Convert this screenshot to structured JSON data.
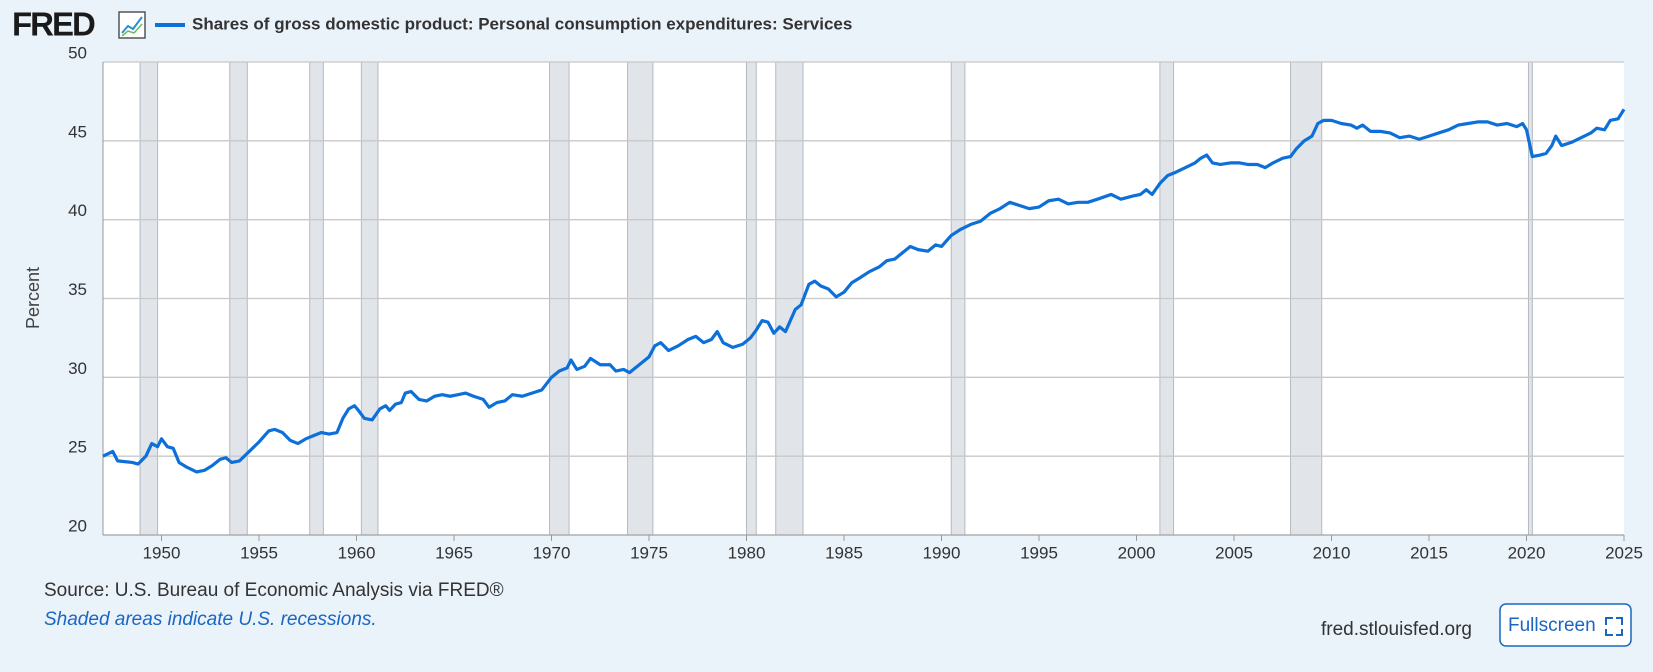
{
  "header": {
    "logo": "FRED"
  },
  "chart_data": {
    "type": "line",
    "y_label": "Percent",
    "x": [
      1947.0,
      1947.5,
      1947.75,
      1948.5,
      1948.8,
      1949.2,
      1949.5,
      1949.8,
      1950.0,
      1950.3,
      1950.6,
      1950.9,
      1951.3,
      1951.8,
      1952.2,
      1952.6,
      1953.0,
      1953.3,
      1953.6,
      1954.0,
      1954.5,
      1955.0,
      1955.5,
      1955.8,
      1956.2,
      1956.6,
      1957.0,
      1957.4,
      1957.8,
      1958.2,
      1958.6,
      1959.0,
      1959.3,
      1959.6,
      1959.9,
      1960.1,
      1960.4,
      1960.8,
      1961.2,
      1961.5,
      1961.7,
      1962.0,
      1962.3,
      1962.5,
      1962.8,
      1963.2,
      1963.6,
      1964.0,
      1964.4,
      1964.8,
      1965.2,
      1965.6,
      1966.0,
      1966.5,
      1966.8,
      1967.2,
      1967.6,
      1968.0,
      1968.5,
      1969.0,
      1969.5,
      1970.0,
      1970.4,
      1970.8,
      1971.0,
      1971.3,
      1971.7,
      1972.0,
      1972.5,
      1973.0,
      1973.3,
      1973.7,
      1974.0,
      1974.5,
      1975.0,
      1975.3,
      1975.6,
      1976.0,
      1976.5,
      1977.0,
      1977.4,
      1977.8,
      1978.2,
      1978.5,
      1978.8,
      1979.3,
      1979.8,
      1980.2,
      1980.5,
      1980.8,
      1981.1,
      1981.4,
      1981.7,
      1982.0,
      1982.5,
      1982.8,
      1983.2,
      1983.5,
      1983.8,
      1984.2,
      1984.6,
      1985.0,
      1985.4,
      1985.8,
      1986.3,
      1986.8,
      1987.2,
      1987.6,
      1988.0,
      1988.4,
      1988.8,
      1989.3,
      1989.7,
      1990.0,
      1990.5,
      1991.0,
      1991.5,
      1992.0,
      1992.5,
      1993.0,
      1993.5,
      1994.0,
      1994.5,
      1995.0,
      1995.5,
      1996.0,
      1996.5,
      1997.0,
      1997.5,
      1998.0,
      1998.7,
      1999.2,
      1999.8,
      2000.2,
      2000.5,
      2000.8,
      2001.2,
      2001.6,
      2002.0,
      2002.5,
      2003.0,
      2003.3,
      2003.6,
      2003.9,
      2004.3,
      2004.8,
      2005.3,
      2005.7,
      2006.2,
      2006.6,
      2007.0,
      2007.5,
      2007.9,
      2008.2,
      2008.6,
      2009.0,
      2009.3,
      2009.6,
      2010.0,
      2010.5,
      2011.0,
      2011.3,
      2011.6,
      2012.0,
      2012.5,
      2013.0,
      2013.5,
      2014.0,
      2014.5,
      2015.0,
      2015.5,
      2016.0,
      2016.5,
      2017.0,
      2017.5,
      2018.0,
      2018.5,
      2019.0,
      2019.5,
      2019.8,
      2020.0,
      2020.3,
      2020.7,
      2021.0,
      2021.3,
      2021.5,
      2021.8,
      2022.3,
      2022.8,
      2023.3,
      2023.6,
      2024.0,
      2024.3,
      2024.7,
      2025.0
    ],
    "series": [
      {
        "name": "Shares of gross domestic product: Personal consumption expenditures: Services",
        "color": "#0d6fd9",
        "values": [
          25.0,
          25.3,
          24.7,
          24.6,
          24.5,
          25.0,
          25.8,
          25.6,
          26.1,
          25.6,
          25.5,
          24.6,
          24.3,
          24.0,
          24.1,
          24.4,
          24.8,
          24.9,
          24.6,
          24.7,
          25.3,
          25.9,
          26.6,
          26.7,
          26.5,
          26.0,
          25.8,
          26.1,
          26.3,
          26.5,
          26.4,
          26.5,
          27.4,
          28.0,
          28.2,
          27.9,
          27.4,
          27.3,
          28.0,
          28.2,
          27.9,
          28.3,
          28.4,
          29.0,
          29.1,
          28.6,
          28.5,
          28.8,
          28.9,
          28.8,
          28.9,
          29.0,
          28.8,
          28.6,
          28.1,
          28.4,
          28.5,
          28.9,
          28.8,
          29.0,
          29.2,
          30.0,
          30.4,
          30.6,
          31.1,
          30.5,
          30.7,
          31.2,
          30.8,
          30.8,
          30.4,
          30.5,
          30.3,
          30.8,
          31.3,
          32.0,
          32.2,
          31.7,
          32.0,
          32.4,
          32.6,
          32.2,
          32.4,
          32.9,
          32.2,
          31.9,
          32.1,
          32.5,
          33.0,
          33.6,
          33.5,
          32.8,
          33.2,
          32.9,
          34.3,
          34.6,
          35.9,
          36.1,
          35.8,
          35.6,
          35.1,
          35.4,
          36.0,
          36.3,
          36.7,
          37.0,
          37.4,
          37.5,
          37.9,
          38.3,
          38.1,
          38.0,
          38.4,
          38.3,
          39.0,
          39.4,
          39.7,
          39.9,
          40.4,
          40.7,
          41.1,
          40.9,
          40.7,
          40.8,
          41.2,
          41.3,
          41.0,
          41.1,
          41.1,
          41.3,
          41.6,
          41.3,
          41.5,
          41.6,
          41.9,
          41.6,
          42.3,
          42.8,
          43.0,
          43.3,
          43.6,
          43.9,
          44.1,
          43.6,
          43.5,
          43.6,
          43.6,
          43.5,
          43.5,
          43.3,
          43.6,
          43.9,
          44.0,
          44.5,
          45.0,
          45.3,
          46.1,
          46.3,
          46.3,
          46.1,
          46.0,
          45.8,
          46.0,
          45.6,
          45.6,
          45.5,
          45.2,
          45.3,
          45.1,
          45.3,
          45.5,
          45.7,
          46.0,
          46.1,
          46.2,
          46.2,
          46.0,
          46.1,
          45.9,
          46.1,
          45.7,
          44.0,
          44.1,
          44.2,
          44.7,
          45.3,
          44.7,
          44.9,
          45.2,
          45.5,
          45.8,
          45.7,
          46.3,
          46.4,
          47.0
        ]
      }
    ],
    "recessions": [
      [
        1948.9,
        1949.8
      ],
      [
        1953.5,
        1954.4
      ],
      [
        1957.6,
        1958.3
      ],
      [
        1960.25,
        1961.1
      ],
      [
        1969.9,
        1970.9
      ],
      [
        1973.9,
        1975.2
      ],
      [
        1980.0,
        1980.5
      ],
      [
        1981.5,
        1982.9
      ],
      [
        1990.5,
        1991.2
      ],
      [
        2001.2,
        2001.9
      ],
      [
        2007.9,
        2009.5
      ],
      [
        2020.1,
        2020.3
      ]
    ],
    "recession_color": "#e1e5ea",
    "xlim": [
      1947,
      2025
    ],
    "xticks": [
      1950,
      1955,
      1960,
      1965,
      1970,
      1975,
      1980,
      1985,
      1990,
      1995,
      2000,
      2005,
      2010,
      2015,
      2020,
      2025
    ],
    "ylim": [
      20,
      50
    ],
    "yticks": [
      20,
      25,
      30,
      35,
      40,
      45,
      50
    ],
    "grid": true
  },
  "footer": {
    "source": "Source: U.S. Bureau of Economic Analysis via FRED®",
    "note": "Shaded areas indicate U.S. recessions.",
    "site": "fred.stlouisfed.org",
    "button": "Fullscreen"
  }
}
